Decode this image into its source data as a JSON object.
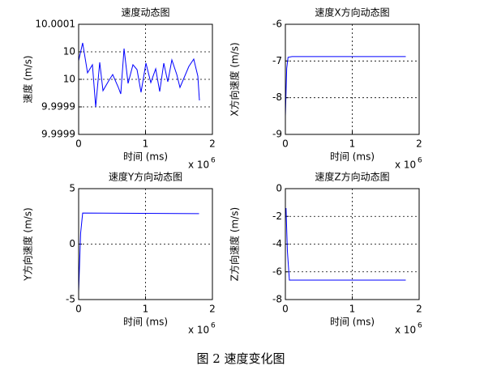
{
  "chart_data": [
    {
      "type": "line",
      "title": "速度动态图",
      "xlabel": "时间 (ms)",
      "ylabel": "速度 (m/s)",
      "x_scale_base": "x 10",
      "x_scale_exponent": "6",
      "x": [
        0,
        60000,
        133000,
        206000,
        255000,
        315000,
        364000,
        448000,
        509000,
        594000,
        630000,
        679000,
        739000,
        812000,
        873000,
        933000,
        1006000,
        1079000,
        1152000,
        1212000,
        1273000,
        1333000,
        1394000,
        1467000,
        1515000,
        1648000,
        1721000,
        1782000,
        1806000
      ],
      "values": [
        10.0000338,
        10.0000662,
        10.0000118,
        10.0000265,
        9.99995,
        10.0000309,
        9.9999794,
        9.9999971,
        10.0000088,
        9.9999853,
        9.9999735,
        10.0000559,
        9.9999926,
        10.0000265,
        10.0000176,
        9.9999765,
        10.0000294,
        9.9999941,
        10.0000191,
        9.9999779,
        10.0000294,
        9.9999956,
        10.0000353,
        10.0000088,
        9.9999853,
        10.0000235,
        10.0000368,
        10.0000059,
        9.9999618
      ],
      "color": "#0000ff",
      "grid": true,
      "xlim": [
        0,
        2000000
      ],
      "xticks": [
        0,
        {
          "value": 1000000,
          "label": "1"
        },
        {
          "value": 2000000,
          "label": "2"
        }
      ],
      "ylim": [
        9.9999,
        10.0001
      ],
      "yticks": [
        9.9999,
        {
          "value": 9.99995,
          "label": "9.9999"
        },
        10,
        {
          "value": 10.00005,
          "label": "10"
        },
        10.0001
      ]
    },
    {
      "type": "line",
      "title": "速度X方向动态图",
      "xlabel": "时间 (ms)",
      "ylabel": "X方向速度 (m/s)",
      "x_scale_base": "x 10",
      "x_scale_exponent": "6",
      "x": [
        0,
        20000,
        40000,
        100000,
        1800000
      ],
      "values": [
        -8.5,
        -7.2,
        -6.9,
        -6.88,
        -6.88
      ],
      "color": "#0000ff",
      "grid": true,
      "xlim": [
        0,
        2000000
      ],
      "xticks": [
        0,
        {
          "value": 1000000,
          "label": "1"
        },
        {
          "value": 2000000,
          "label": "2"
        }
      ],
      "ylim": [
        -9,
        -6
      ],
      "yticks": [
        -9,
        -8,
        -7,
        -6
      ]
    },
    {
      "type": "line",
      "title": "速度Y方向动态图",
      "xlabel": "时间 (ms)",
      "ylabel": "Y方向速度 (m/s)",
      "x_scale_base": "x 10",
      "x_scale_exponent": "6",
      "x": [
        0,
        30000,
        60000,
        1800000
      ],
      "values": [
        -4.3,
        1,
        2.8,
        2.75
      ],
      "color": "#0000ff",
      "grid": true,
      "xlim": [
        0,
        2000000
      ],
      "xticks": [
        0,
        {
          "value": 1000000,
          "label": "1"
        },
        {
          "value": 2000000,
          "label": "2"
        }
      ],
      "ylim": [
        -5,
        5
      ],
      "yticks": [
        -5,
        0,
        5
      ]
    },
    {
      "type": "line",
      "title": "速度Z方向动态图",
      "xlabel": "时间 (ms)",
      "ylabel": "Z方向速度 (m/s)",
      "x_scale_base": "x 10",
      "x_scale_exponent": "6",
      "x": [
        10000,
        30000,
        60000,
        1800000
      ],
      "values": [
        -1.4,
        -4.5,
        -6.6,
        -6.6
      ],
      "color": "#0000ff",
      "grid": true,
      "xlim": [
        0,
        2000000
      ],
      "xticks": [
        0,
        {
          "value": 1000000,
          "label": "1"
        },
        {
          "value": 2000000,
          "label": "2"
        }
      ],
      "ylim": [
        -8,
        0
      ],
      "yticks": [
        -8,
        -6,
        -4,
        -2,
        0
      ]
    }
  ],
  "caption": "图 2  速度变化图"
}
